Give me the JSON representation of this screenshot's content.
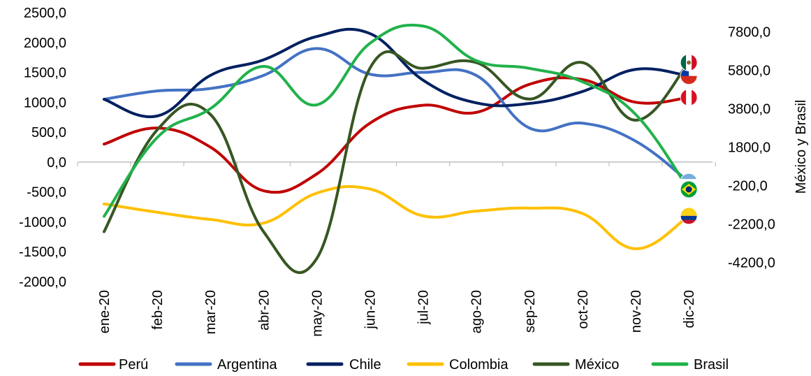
{
  "chart_data": {
    "type": "line",
    "categories": [
      "ene-20",
      "feb-20",
      "mar-20",
      "abr-20",
      "may-20",
      "jun-20",
      "jul-20",
      "ago-20",
      "sep-20",
      "oct-20",
      "nov-20",
      "dic-20"
    ],
    "y_left": {
      "min": -2000,
      "max": 2500,
      "ticks": [
        "2500,0",
        "2000,0",
        "1500,0",
        "1000,0",
        "500,0",
        "0,0",
        "-500,0",
        "-1000,0",
        "-1500,0",
        "-2000,0"
      ],
      "tick_values": [
        2500,
        2000,
        1500,
        1000,
        500,
        0,
        -500,
        -1000,
        -1500,
        -2000
      ]
    },
    "y_right": {
      "label": "México y Brasil",
      "min": -5200,
      "max": 8800,
      "ticks": [
        "7800,0",
        "5800,0",
        "3800,0",
        "1800,0",
        "-200,0",
        "-2200,0",
        "-4200,0"
      ],
      "tick_values": [
        7800,
        5800,
        3800,
        1800,
        -200,
        -2200,
        -4200
      ]
    },
    "series": [
      {
        "name": "Perú",
        "axis": "left",
        "color": "#C00000",
        "flag": "peru-flag-icon",
        "values": [
          300,
          570,
          250,
          -480,
          -200,
          650,
          950,
          830,
          1300,
          1380,
          1000,
          1080
        ]
      },
      {
        "name": "Argentina",
        "axis": "left",
        "color": "#4472C4",
        "flag": "argentina-flag-icon",
        "values": [
          1050,
          1190,
          1230,
          1450,
          1900,
          1470,
          1500,
          1450,
          570,
          650,
          350,
          -330
        ]
      },
      {
        "name": "Chile",
        "axis": "left",
        "color": "#002060",
        "flag": "chile-flag-icon",
        "values": [
          1050,
          770,
          1450,
          1710,
          2100,
          2150,
          1370,
          990,
          980,
          1180,
          1550,
          1440
        ]
      },
      {
        "name": "Colombia",
        "axis": "left",
        "color": "#FFC000",
        "flag": "colombia-flag-icon",
        "values": [
          -700,
          -840,
          -960,
          -1020,
          -520,
          -450,
          -900,
          -820,
          -770,
          -860,
          -1450,
          -900
        ]
      },
      {
        "name": "México",
        "axis": "right",
        "color": "#375623",
        "flag": "mexico-flag-icon",
        "values": [
          -2600,
          2700,
          3500,
          -2600,
          -4000,
          5900,
          5900,
          6200,
          4300,
          6200,
          3200,
          6200
        ]
      },
      {
        "name": "Brasil",
        "axis": "right",
        "color": "#21B24B",
        "flag": "brasil-flag-icon",
        "values": [
          -1800,
          2300,
          3800,
          6000,
          4000,
          7200,
          8100,
          6300,
          5900,
          5200,
          3500,
          -400
        ]
      }
    ],
    "legend_position": "bottom",
    "grid": false
  }
}
